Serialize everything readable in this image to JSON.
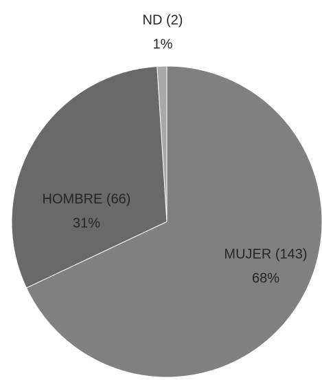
{
  "chart_data": {
    "type": "pie",
    "categories": [
      "MUJER (143)",
      "HOMBRE (66)",
      "ND (2)"
    ],
    "values": [
      68,
      31,
      1
    ],
    "value_labels": [
      "68%",
      "31%",
      "1%"
    ],
    "colors": [
      "#808080",
      "#696969",
      "#a9a9a9"
    ]
  }
}
